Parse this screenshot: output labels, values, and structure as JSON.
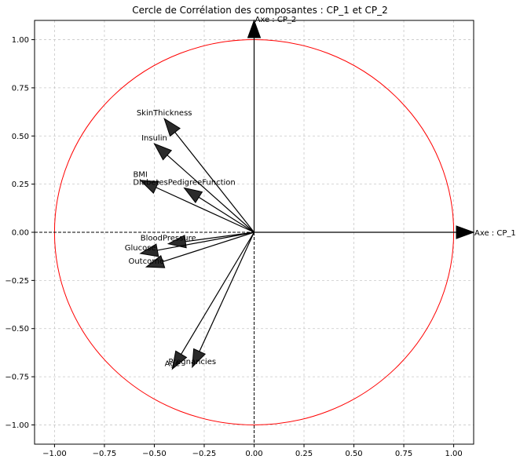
{
  "chart_data": {
    "type": "scatter",
    "title": "Cercle de Corrélation des composantes : CP_1 et CP_2",
    "xlabel": "",
    "ylabel": "",
    "xlim": [
      -1.1,
      1.1
    ],
    "ylim": [
      -1.1,
      1.1
    ],
    "grid": true,
    "x_ticks": [
      -1.0,
      -0.75,
      -0.5,
      -0.25,
      0.0,
      0.25,
      0.5,
      0.75,
      1.0
    ],
    "y_ticks": [
      -1.0,
      -0.75,
      -0.5,
      -0.25,
      0.0,
      0.25,
      0.5,
      0.75,
      1.0
    ],
    "x_tick_labels": [
      "−1.00",
      "−0.75",
      "−0.50",
      "−0.25",
      "0.00",
      "0.25",
      "0.50",
      "0.75",
      "1.00"
    ],
    "y_tick_labels": [
      "−1.00",
      "−0.75",
      "−0.50",
      "−0.25",
      "0.00",
      "0.25",
      "0.50",
      "0.75",
      "1.00"
    ],
    "circle": {
      "radius": 1.0,
      "color": "#ff0000"
    },
    "axes_arrows": [
      {
        "label": "Axe : CP_1",
        "x": 1.1,
        "y": 0.0
      },
      {
        "label": "Axe : CP_2",
        "x": 0.0,
        "y": 1.1
      }
    ],
    "variables": [
      {
        "name": "SkinThickness",
        "x": -0.45,
        "y": 0.59
      },
      {
        "name": "Insulin",
        "x": -0.5,
        "y": 0.46
      },
      {
        "name": "BMI",
        "x": -0.57,
        "y": 0.27
      },
      {
        "name": "DiabetesPedigreeFunction",
        "x": -0.35,
        "y": 0.23
      },
      {
        "name": "BloodPressure",
        "x": -0.43,
        "y": -0.06
      },
      {
        "name": "Glucose",
        "x": -0.57,
        "y": -0.11
      },
      {
        "name": "Outcome",
        "x": -0.54,
        "y": -0.18
      },
      {
        "name": "Age",
        "x": -0.41,
        "y": -0.71
      },
      {
        "name": "Pregnancies",
        "x": -0.31,
        "y": -0.7
      }
    ],
    "colors": {
      "arrow": "#000000",
      "arrow_head": "#2b2b2b",
      "grid": "#c8c8c8",
      "axes_lines": "#000000"
    }
  }
}
